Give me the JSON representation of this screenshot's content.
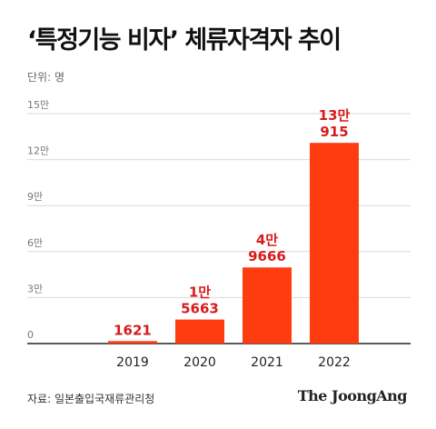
{
  "title": "‘특정기능 비자’ 체류자격자 추이",
  "unit_label": "단위: 명",
  "source": "자료: 일본출입국재류관리청",
  "brand": "The JoongAng",
  "colors": {
    "bar": "#ff3c0f",
    "data_label": "#d81b1b",
    "grid": "#d9d9d9",
    "baseline": "#222222"
  },
  "chart_data": {
    "type": "bar",
    "categories": [
      "2019",
      "2020",
      "2021",
      "2022"
    ],
    "values": [
      1621,
      15663,
      49666,
      130915
    ],
    "value_labels": [
      [
        "1621"
      ],
      [
        "1만",
        "5663"
      ],
      [
        "4만",
        "9666"
      ],
      [
        "13만",
        "915"
      ]
    ],
    "yticks": [
      0,
      30000,
      60000,
      90000,
      120000,
      150000
    ],
    "ytick_labels": [
      "0",
      "3만",
      "6만",
      "9만",
      "12만",
      "15만"
    ],
    "ylim": [
      0,
      150000
    ],
    "grid": true,
    "xlabel": "",
    "ylabel": ""
  }
}
